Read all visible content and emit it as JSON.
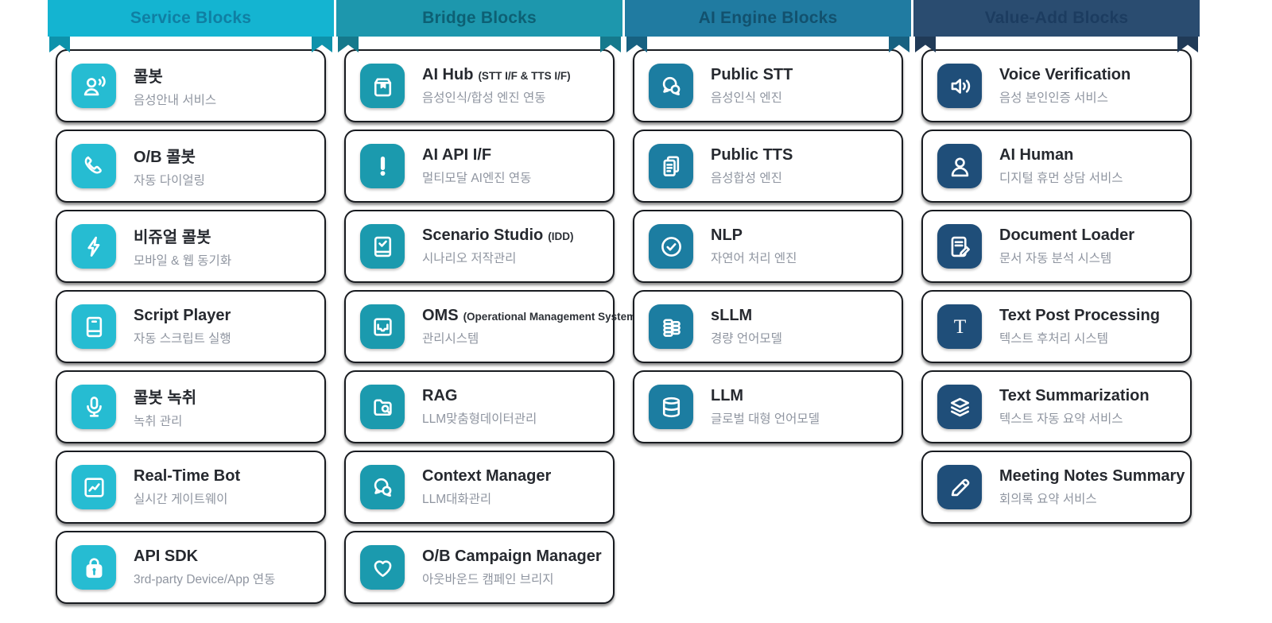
{
  "columns": [
    {
      "id": "service",
      "header": {
        "label": "Service Blocks"
      },
      "colors": {
        "banner": "#14b4d1",
        "banner_dark": "#0d92ab",
        "banner_text": "#0f7fa3",
        "icon": "#26bcd2"
      },
      "cards": [
        {
          "icon": "agent-voice-icon",
          "title": "콜봇",
          "suffix": "",
          "subtitle": "음성안내 서비스"
        },
        {
          "icon": "phone-icon",
          "title": "O/B 콜봇",
          "suffix": "",
          "subtitle": "자동 다이얼링"
        },
        {
          "icon": "lightning-icon",
          "title": "비쥬얼 콜봇",
          "suffix": "",
          "subtitle": "모바일 & 웹 동기화"
        },
        {
          "icon": "book-icon",
          "title": "Script Player",
          "suffix": "",
          "subtitle": "자동 스크립트 실행"
        },
        {
          "icon": "microphone-icon",
          "title": "콜봇 녹취",
          "suffix": "",
          "subtitle": "녹취 관리"
        },
        {
          "icon": "trend-chart-icon",
          "title": "Real-Time Bot",
          "suffix": "",
          "subtitle": "실시간 게이트웨이"
        },
        {
          "icon": "lock-icon",
          "title": "API SDK",
          "suffix": "",
          "subtitle": "3rd-party Device/App 연동"
        }
      ]
    },
    {
      "id": "bridge",
      "header": {
        "label": "Bridge Blocks"
      },
      "colors": {
        "banner": "#1d97ad",
        "banner_dark": "#15798c",
        "banner_text": "#0d6074",
        "icon": "#1b9aae"
      },
      "cards": [
        {
          "icon": "package-icon",
          "title": "AI Hub",
          "suffix": "(STT I/F & TTS I/F)",
          "subtitle": "음성인식/합성 엔진 연동"
        },
        {
          "icon": "exclamation-icon",
          "title": "AI API I/F",
          "suffix": "",
          "subtitle": "멀티모달 AI엔진 연동"
        },
        {
          "icon": "checkbox-panel-icon",
          "title": "Scenario Studio",
          "suffix": "(IDD)",
          "subtitle": "시나리오 저작관리"
        },
        {
          "icon": "tray-icon",
          "title": "OMS",
          "suffix": "(Operational Management System)",
          "subtitle": "관리시스템"
        },
        {
          "icon": "folder-search-icon",
          "title": "RAG",
          "suffix": "",
          "subtitle": "LLM맞춤형데이터관리"
        },
        {
          "icon": "chat-bubbles-icon",
          "title": "Context Manager",
          "suffix": "",
          "subtitle": "LLM대화관리"
        },
        {
          "icon": "heart-icon",
          "title": "O/B Campaign Manager",
          "suffix": "",
          "subtitle": "아웃바운드 캠페인 브리지"
        }
      ]
    },
    {
      "id": "engine",
      "header": {
        "label": "AI Engine Blocks"
      },
      "colors": {
        "banner": "#207ba1",
        "banner_dark": "#176181",
        "banner_text": "#12516e",
        "icon": "#1c7da1"
      },
      "cards": [
        {
          "icon": "chat-bubbles-icon",
          "title": "Public STT",
          "suffix": "",
          "subtitle": "음성인식 엔진"
        },
        {
          "icon": "documents-icon",
          "title": "Public TTS",
          "suffix": "",
          "subtitle": "음성합성 엔진"
        },
        {
          "icon": "check-circle-icon",
          "title": "NLP",
          "suffix": "",
          "subtitle": "자연어 처리 엔진"
        },
        {
          "icon": "coins-icon",
          "title": "sLLM",
          "suffix": "",
          "subtitle": "경량 언어모델"
        },
        {
          "icon": "database-icon",
          "title": "LLM",
          "suffix": "",
          "subtitle": "글로벌 대형 언어모델"
        }
      ]
    },
    {
      "id": "value-add",
      "header": {
        "label": "Value-Add Blocks"
      },
      "colors": {
        "banner": "#2a4c70",
        "banner_dark": "#203a57",
        "banner_text": "#1c3c60",
        "icon": "#1f4e79"
      },
      "cards": [
        {
          "icon": "speaker-icon",
          "title": "Voice Verification",
          "suffix": "",
          "subtitle": "음성 본인인증 서비스"
        },
        {
          "icon": "person-icon",
          "title": "AI Human",
          "suffix": "",
          "subtitle": "디지털 휴먼 상담 서비스"
        },
        {
          "icon": "document-edit-icon",
          "title": "Document Loader",
          "suffix": "",
          "subtitle": "문서 자동 분석 시스템"
        },
        {
          "icon": "letter-t-icon",
          "title": "Text Post Processing",
          "suffix": "",
          "subtitle": "텍스트 후처리 시스템"
        },
        {
          "icon": "layers-icon",
          "title": "Text Summarization",
          "suffix": "",
          "subtitle": "텍스트 자동 요약 서비스"
        },
        {
          "icon": "pen-icon",
          "title": "Meeting Notes Summary",
          "suffix": "",
          "subtitle": "회의록 요약 서비스"
        }
      ]
    }
  ]
}
